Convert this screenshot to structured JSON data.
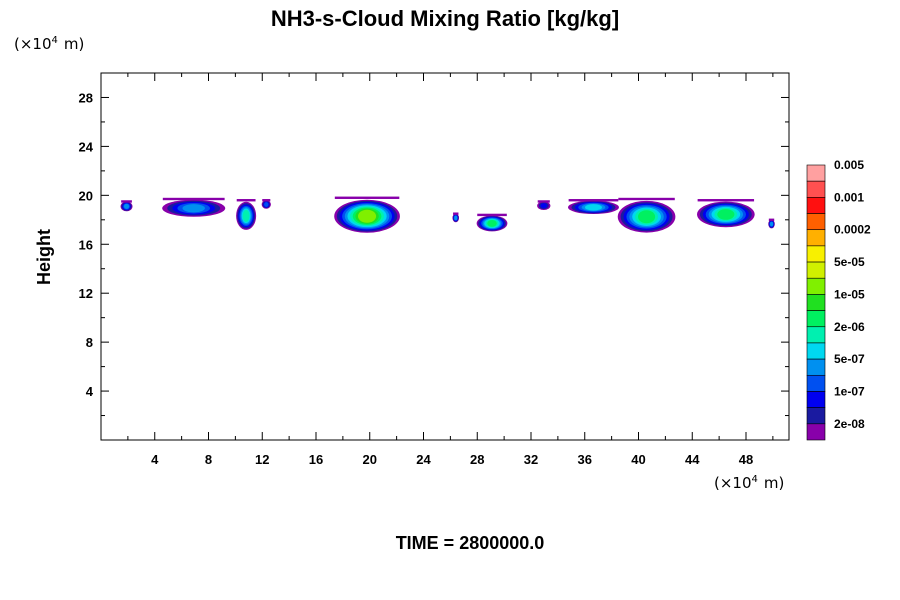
{
  "chart_data": {
    "type": "heatmap",
    "title": "NH3-s-Cloud Mixing Ratio [kg/kg]",
    "xlabel": "",
    "ylabel": "Height",
    "x_unit": "(×10",
    "y_unit": "(×10",
    "unit_exponent": "4",
    "unit_suffix": "m)",
    "xlim": [
      0,
      51.2
    ],
    "ylim": [
      0,
      30
    ],
    "xticks": [
      4,
      8,
      12,
      16,
      20,
      24,
      28,
      32,
      36,
      40,
      44,
      48
    ],
    "yticks": [
      4,
      8,
      12,
      16,
      20,
      24,
      28
    ],
    "grid": false,
    "legend_placement": "right",
    "time_label": "TIME = 2800000.0",
    "colorbar": {
      "colors": [
        "#8800aa",
        "#1a1aa0",
        "#0000f0",
        "#0050f0",
        "#0090f0",
        "#00d8f0",
        "#00f0b0",
        "#00f060",
        "#20e020",
        "#80f000",
        "#d0f000",
        "#f8f000",
        "#ffb000",
        "#ff6000",
        "#ff1010",
        "#ff5050",
        "#ffa0a0"
      ],
      "labels": [
        "2e-08",
        "1e-07",
        "5e-07",
        "2e-06",
        "1e-05",
        "5e-05",
        "0.0002",
        "0.001",
        "0.005"
      ]
    },
    "cloud_regions": [
      {
        "x0": 1.5,
        "x1": 2.3,
        "ytop": 19.5,
        "ybot": 18.8,
        "peak": 0.3
      },
      {
        "x0": 4.6,
        "x1": 9.2,
        "ytop": 19.7,
        "ybot": 18.4,
        "peak": 0.35
      },
      {
        "x0": 10.1,
        "x1": 11.5,
        "ytop": 19.6,
        "ybot": 17.4,
        "peak": 0.5
      },
      {
        "x0": 12.0,
        "x1": 12.6,
        "ytop": 19.6,
        "ybot": 19.0,
        "peak": 0.25
      },
      {
        "x0": 17.4,
        "x1": 22.2,
        "ytop": 19.8,
        "ybot": 17.2,
        "peak": 0.78
      },
      {
        "x0": 26.2,
        "x1": 26.6,
        "ytop": 18.5,
        "ybot": 17.9,
        "peak": 0.32
      },
      {
        "x0": 28.0,
        "x1": 30.2,
        "ytop": 18.4,
        "ybot": 17.2,
        "peak": 0.6
      },
      {
        "x0": 32.5,
        "x1": 33.4,
        "ytop": 19.5,
        "ybot": 18.9,
        "peak": 0.2
      },
      {
        "x0": 34.8,
        "x1": 38.5,
        "ytop": 19.6,
        "ybot": 18.6,
        "peak": 0.4
      },
      {
        "x0": 38.5,
        "x1": 42.7,
        "ytop": 19.7,
        "ybot": 17.2,
        "peak": 0.6
      },
      {
        "x0": 44.4,
        "x1": 48.6,
        "ytop": 19.6,
        "ybot": 17.6,
        "peak": 0.55
      },
      {
        "x0": 49.7,
        "x1": 50.1,
        "ytop": 18.0,
        "ybot": 17.4,
        "peak": 0.3
      }
    ]
  }
}
